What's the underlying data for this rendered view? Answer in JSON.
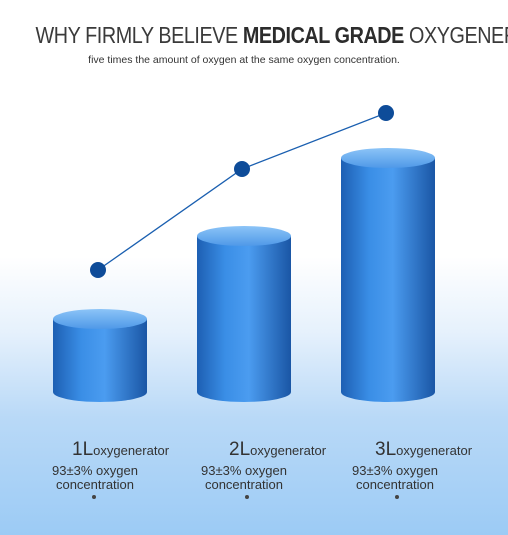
{
  "header": {
    "title_light_1": "WHY FIRMLY BELIEVE ",
    "title_bold": "MEDICAL GRADE",
    "title_light_2": " OXYGENERATOR",
    "subtitle": "five times the amount of oxygen at the same oxygen concentration."
  },
  "chart_data": {
    "type": "bar",
    "categories": [
      "1L oxygenerator",
      "2L oxygenerator",
      "3L oxygenerator"
    ],
    "values": [
      1,
      2,
      3
    ],
    "ylim": [
      0,
      3.5
    ],
    "line_overlay": true,
    "grid": false,
    "colors": {
      "bar": "#2f7fd8",
      "bar_dark": "#1d5fb3",
      "bar_top": "#5fa6ee",
      "line": "#1a5fb0",
      "point": "#0e4c99"
    }
  },
  "labels": [
    {
      "num": "1L",
      "unit": "oxygenerator",
      "desc_line1": "93±3% oxygen",
      "desc_line2": "concentration"
    },
    {
      "num": "2L",
      "unit": "oxygenerator",
      "desc_line1": "93±3% oxygen",
      "desc_line2": "concentration"
    },
    {
      "num": "3L",
      "unit": "oxygenerator",
      "desc_line1": "93±3% oxygen",
      "desc_line2": "concentration"
    }
  ]
}
